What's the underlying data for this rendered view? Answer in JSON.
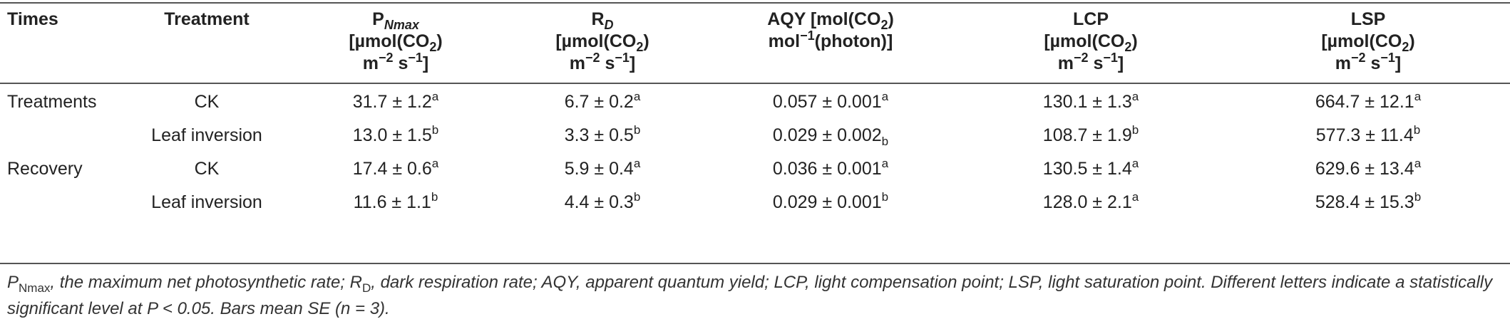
{
  "header": {
    "times": "Times",
    "treatment": "Treatment",
    "pnmax": {
      "main": "P",
      "sub": "Nmax",
      "l2": "[µmol(CO",
      "l2sub": "2",
      "l2end": ")",
      "l3a": "m",
      "l3sup1": "−2",
      "l3b": " s",
      "l3sup2": "−1",
      "l3c": "]"
    },
    "rd": {
      "main": "R",
      "sub": "D",
      "l2": "[µmol(CO",
      "l2sub": "2",
      "l2end": ")",
      "l3a": "m",
      "l3sup1": "−2",
      "l3b": " s",
      "l3sup2": "−1",
      "l3c": "]"
    },
    "aqy": {
      "l1": "AQY  [mol(CO",
      "l1sub": "2",
      "l1end": ")",
      "l2a": "mol",
      "l2sup": "−1",
      "l2b": "(photon)]"
    },
    "lcp": {
      "main": "LCP",
      "l2": "[µmol(CO",
      "l2sub": "2",
      "l2end": ")",
      "l3a": "m",
      "l3sup1": "−2",
      "l3b": " s",
      "l3sup2": "−1",
      "l3c": "]"
    },
    "lsp": {
      "main": "LSP",
      "l2": "[µmol(CO",
      "l2sub": "2",
      "l2end": ")",
      "l3a": "m",
      "l3sup1": "−2",
      "l3b": " s",
      "l3sup2": "−1",
      "l3c": "]"
    }
  },
  "rows": [
    {
      "time": "Treatments",
      "treatment": "CK",
      "pnmax": "31.7 ± 1.2",
      "pnmax_l": "a",
      "rd": "6.7 ± 0.2",
      "rd_l": "a",
      "aqy": "0.057 ± 0.001",
      "aqy_l": "a",
      "lcp": "130.1 ± 1.3",
      "lcp_l": "a",
      "lsp": "664.7 ± 12.1",
      "lsp_l": "a"
    },
    {
      "time": "",
      "treatment": "Leaf inversion",
      "pnmax": "13.0 ± 1.5",
      "pnmax_l": "b",
      "rd": "3.3 ± 0.5",
      "rd_l": "b",
      "aqy": "0.029 ± 0.002",
      "aqy_l": "b",
      "lcp": "108.7 ± 1.9",
      "lcp_l": "b",
      "lsp": "577.3 ± 11.4",
      "lsp_l": "b"
    },
    {
      "time": "Recovery",
      "treatment": "CK",
      "pnmax": "17.4 ± 0.6",
      "pnmax_l": "a",
      "rd": "5.9 ± 0.4",
      "rd_l": "a",
      "aqy": "0.036 ± 0.001",
      "aqy_l": "a",
      "lcp": "130.5 ± 1.4",
      "lcp_l": "a",
      "lsp": "629.6 ± 13.4",
      "lsp_l": "a"
    },
    {
      "time": "",
      "treatment": "Leaf inversion",
      "pnmax": "11.6 ± 1.1",
      "pnmax_l": "b",
      "rd": "4.4 ± 0.3",
      "rd_l": "b",
      "aqy": "0.029 ± 0.001",
      "aqy_l": "b",
      "lcp": "128.0 ± 2.1",
      "lcp_l": "a",
      "lsp": "528.4 ± 15.3",
      "lsp_l": "b"
    }
  ],
  "footnote": {
    "p": "P",
    "p_sub": "Nmax",
    "t1": ", the maximum net photosynthetic rate; R",
    "r_sub": "D",
    "t2": ", dark respiration rate; AQY, apparent quantum yield; LCP, light compensation point; LSP, light saturation point. Different letters indicate a statistically significant level at P < 0.05. Bars mean SE (n = 3)."
  }
}
